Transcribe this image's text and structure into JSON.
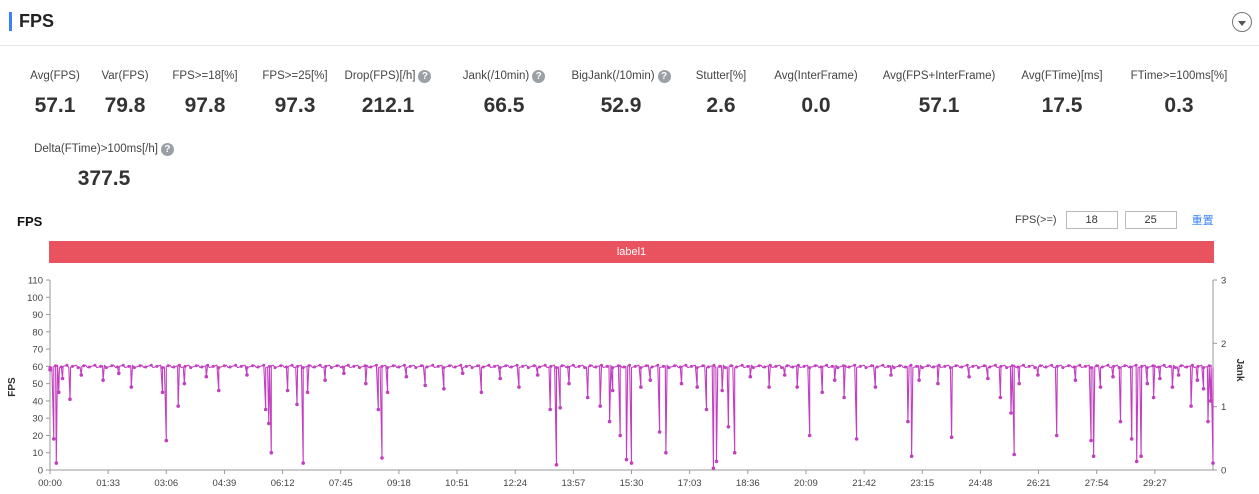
{
  "header": {
    "title": "FPS"
  },
  "metrics": [
    {
      "label": "Avg(FPS)",
      "value": "57.1",
      "help": false
    },
    {
      "label": "Var(FPS)",
      "value": "79.8",
      "help": false
    },
    {
      "label": "FPS>=18[%]",
      "value": "97.8",
      "help": false
    },
    {
      "label": "FPS>=25[%]",
      "value": "97.3",
      "help": false
    },
    {
      "label": "Drop(FPS)[/h]",
      "value": "212.1",
      "help": true
    },
    {
      "label": "Jank(/10min)",
      "value": "66.5",
      "help": true
    },
    {
      "label": "BigJank(/10min)",
      "value": "52.9",
      "help": true
    },
    {
      "label": "Stutter[%]",
      "value": "2.6",
      "help": false
    },
    {
      "label": "Avg(InterFrame)",
      "value": "0.0",
      "help": false
    },
    {
      "label": "Avg(FPS+InterFrame)",
      "value": "57.1",
      "help": false
    },
    {
      "label": "Avg(FTime)[ms]",
      "value": "17.5",
      "help": false
    },
    {
      "label": "FTime>=100ms[%]",
      "value": "0.3",
      "help": false
    },
    {
      "label": "Delta(FTime)>100ms[/h]",
      "value": "377.5",
      "help": true
    }
  ],
  "controls": {
    "fps_ge_label": "FPS(>=)",
    "threshold_low": "18",
    "threshold_high": "25",
    "reset_label": "重置"
  },
  "colors": {
    "accent": "#3b82f6",
    "label_bar": "#e9525f",
    "series": "#c23fc0"
  },
  "chart_data": {
    "type": "line",
    "title": "FPS",
    "label_bar": "label1",
    "ylabel": "FPS",
    "y2label": "Jank",
    "ylim": [
      0,
      110
    ],
    "y2lim": [
      0,
      3
    ],
    "yticks": [
      0,
      10,
      20,
      30,
      40,
      50,
      60,
      70,
      80,
      90,
      100,
      110
    ],
    "y2ticks": [
      0,
      1,
      2,
      3
    ],
    "xlim_seconds": [
      0,
      1860
    ],
    "xticks": [
      "00:00",
      "01:33",
      "03:06",
      "04:39",
      "06:12",
      "07:45",
      "09:18",
      "10:51",
      "12:24",
      "13:57",
      "15:30",
      "17:03",
      "18:36",
      "20:09",
      "21:42",
      "23:15",
      "24:48",
      "26:21",
      "27:54",
      "29:27"
    ],
    "series": [
      {
        "baseline_fps": 60,
        "dips": [
          {
            "t": 0,
            "fps": 58
          },
          {
            "t": 6,
            "fps": 18
          },
          {
            "t": 10,
            "fps": 4
          },
          {
            "t": 14,
            "fps": 45
          },
          {
            "t": 20,
            "fps": 53
          },
          {
            "t": 32,
            "fps": 41
          },
          {
            "t": 50,
            "fps": 55
          },
          {
            "t": 85,
            "fps": 52
          },
          {
            "t": 110,
            "fps": 56
          },
          {
            "t": 130,
            "fps": 48
          },
          {
            "t": 180,
            "fps": 45
          },
          {
            "t": 186,
            "fps": 17
          },
          {
            "t": 205,
            "fps": 37
          },
          {
            "t": 215,
            "fps": 50
          },
          {
            "t": 250,
            "fps": 54
          },
          {
            "t": 270,
            "fps": 46
          },
          {
            "t": 315,
            "fps": 55
          },
          {
            "t": 345,
            "fps": 35
          },
          {
            "t": 350,
            "fps": 27
          },
          {
            "t": 354,
            "fps": 10
          },
          {
            "t": 380,
            "fps": 46
          },
          {
            "t": 395,
            "fps": 38
          },
          {
            "t": 405,
            "fps": 4
          },
          {
            "t": 412,
            "fps": 45
          },
          {
            "t": 440,
            "fps": 52
          },
          {
            "t": 470,
            "fps": 56
          },
          {
            "t": 505,
            "fps": 50
          },
          {
            "t": 525,
            "fps": 35
          },
          {
            "t": 531,
            "fps": 7
          },
          {
            "t": 540,
            "fps": 45
          },
          {
            "t": 570,
            "fps": 54
          },
          {
            "t": 600,
            "fps": 49
          },
          {
            "t": 630,
            "fps": 47
          },
          {
            "t": 660,
            "fps": 56
          },
          {
            "t": 690,
            "fps": 45
          },
          {
            "t": 720,
            "fps": 53
          },
          {
            "t": 750,
            "fps": 48
          },
          {
            "t": 780,
            "fps": 55
          },
          {
            "t": 800,
            "fps": 35
          },
          {
            "t": 810,
            "fps": 3
          },
          {
            "t": 816,
            "fps": 36
          },
          {
            "t": 830,
            "fps": 50
          },
          {
            "t": 860,
            "fps": 42
          },
          {
            "t": 880,
            "fps": 37
          },
          {
            "t": 895,
            "fps": 28
          },
          {
            "t": 900,
            "fps": 46
          },
          {
            "t": 912,
            "fps": 20
          },
          {
            "t": 922,
            "fps": 6
          },
          {
            "t": 930,
            "fps": 4
          },
          {
            "t": 945,
            "fps": 48
          },
          {
            "t": 960,
            "fps": 52
          },
          {
            "t": 975,
            "fps": 22
          },
          {
            "t": 985,
            "fps": 10
          },
          {
            "t": 1010,
            "fps": 50
          },
          {
            "t": 1035,
            "fps": 48
          },
          {
            "t": 1050,
            "fps": 35
          },
          {
            "t": 1061,
            "fps": 1
          },
          {
            "t": 1066,
            "fps": 5
          },
          {
            "t": 1075,
            "fps": 46
          },
          {
            "t": 1085,
            "fps": 25
          },
          {
            "t": 1095,
            "fps": 10
          },
          {
            "t": 1120,
            "fps": 54
          },
          {
            "t": 1150,
            "fps": 48
          },
          {
            "t": 1175,
            "fps": 55
          },
          {
            "t": 1195,
            "fps": 48
          },
          {
            "t": 1215,
            "fps": 20
          },
          {
            "t": 1235,
            "fps": 45
          },
          {
            "t": 1255,
            "fps": 52
          },
          {
            "t": 1270,
            "fps": 42
          },
          {
            "t": 1290,
            "fps": 18
          },
          {
            "t": 1320,
            "fps": 48
          },
          {
            "t": 1345,
            "fps": 55
          },
          {
            "t": 1372,
            "fps": 28
          },
          {
            "t": 1378,
            "fps": 8
          },
          {
            "t": 1390,
            "fps": 52
          },
          {
            "t": 1420,
            "fps": 50
          },
          {
            "t": 1442,
            "fps": 19
          },
          {
            "t": 1470,
            "fps": 54
          },
          {
            "t": 1500,
            "fps": 53
          },
          {
            "t": 1520,
            "fps": 42
          },
          {
            "t": 1537,
            "fps": 33
          },
          {
            "t": 1542,
            "fps": 9
          },
          {
            "t": 1550,
            "fps": 50
          },
          {
            "t": 1580,
            "fps": 55
          },
          {
            "t": 1610,
            "fps": 20
          },
          {
            "t": 1640,
            "fps": 52
          },
          {
            "t": 1665,
            "fps": 17
          },
          {
            "t": 1669,
            "fps": 8
          },
          {
            "t": 1680,
            "fps": 48
          },
          {
            "t": 1700,
            "fps": 54
          },
          {
            "t": 1712,
            "fps": 28
          },
          {
            "t": 1730,
            "fps": 18
          },
          {
            "t": 1738,
            "fps": 5
          },
          {
            "t": 1745,
            "fps": 8
          },
          {
            "t": 1755,
            "fps": 50
          },
          {
            "t": 1765,
            "fps": 42
          },
          {
            "t": 1775,
            "fps": 53
          },
          {
            "t": 1795,
            "fps": 48
          },
          {
            "t": 1805,
            "fps": 55
          },
          {
            "t": 1825,
            "fps": 37
          },
          {
            "t": 1835,
            "fps": 52
          },
          {
            "t": 1845,
            "fps": 47
          },
          {
            "t": 1852,
            "fps": 28
          },
          {
            "t": 1856,
            "fps": 40
          },
          {
            "t": 1860,
            "fps": 4
          }
        ]
      }
    ]
  }
}
